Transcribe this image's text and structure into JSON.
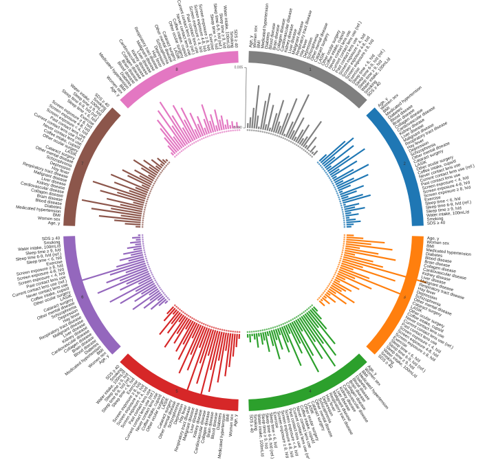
{
  "chart_data": {
    "type": "circular-bar",
    "axis": {
      "ticks": [
        "0.000",
        "0.005"
      ]
    },
    "variables": [
      "Age, y",
      "Women sex",
      "BMI",
      "Medicated hypertension",
      "Diabetes",
      "Blood disease",
      "Brain disease",
      "Collagen disease",
      "Cardiovascular disease",
      "Kidney disease",
      "Liver disease",
      "Malignant disease",
      "Respiratory tract disease",
      "Hay fever",
      "Depression",
      "Schizophrenia",
      "Other mental disease",
      "Cataract surgery",
      "LASIK",
      "Other ocular surgery",
      "Coffee intake, cups/d",
      "Never contact lens use",
      "Current contact lens use (ref.)",
      "Past contact lens use",
      "Screen exposure < 4, h/d",
      "Screen exposure 4-8, h/d",
      "Screen exposure ≥ 8, h/d",
      "Exercise",
      "Sleep time < 6, h/d",
      "Sleep time 6-9, h/d (ref.)",
      "Sleep time ≥ 9, h/d",
      "Water intake, 100mL/d",
      "Smoking",
      "SDS ≥ 40"
    ],
    "segments": [
      {
        "label": "1",
        "color": "#7f7f7f",
        "values": [
          0.0004,
          0.0009,
          0.0017,
          0.0036,
          0.0011,
          0.0002,
          0.0024,
          0.0031,
          0.0005,
          0.0022,
          0.0003,
          0.0016,
          0.0028,
          0.001,
          0.0007,
          0.0019,
          0.0033,
          0.0002,
          0.0014,
          0.004,
          0.0008,
          0.0021,
          0.0004,
          0.0012,
          0.0018,
          0.0006,
          0.0009,
          0.0026,
          0.0003,
          0.0013,
          0.0001,
          0.0007,
          0.0002,
          0.0005
        ]
      },
      {
        "label": "2",
        "color": "#1f77b4",
        "values": [
          0.0008,
          0.0027,
          0.0034,
          0.0012,
          0.003,
          0.0005,
          0.0022,
          0.0036,
          0.0009,
          0.0025,
          0.0004,
          0.0019,
          0.0032,
          0.0007,
          0.0016,
          0.0028,
          0.0011,
          0.0003,
          0.0021,
          0.0014,
          0.0006,
          0.0018,
          0.0024,
          0.0002,
          0.0013,
          0.0009,
          0.0017,
          0.0005,
          0.0011,
          0.0003,
          0.0008,
          0.0012,
          0.0006,
          0.0004
        ]
      },
      {
        "label": "3",
        "color": "#ff7f0e",
        "values": [
          0.0006,
          0.0014,
          0.0032,
          0.0021,
          0.0039,
          0.0012,
          0.0028,
          0.0043,
          0.0009,
          0.0025,
          0.0034,
          0.0072,
          0.0018,
          0.0047,
          0.0011,
          0.0026,
          0.0059,
          0.0015,
          0.0031,
          0.0008,
          0.0022,
          0.0005,
          0.0017,
          0.0013,
          0.001,
          0.0024,
          0.0007,
          0.0019,
          0.0004,
          0.0011,
          0.0003,
          0.0008,
          0.0002,
          0.0006
        ]
      },
      {
        "label": "4",
        "color": "#2ca02c",
        "values": [
          0.0005,
          0.0012,
          0.0021,
          0.0035,
          0.0016,
          0.0043,
          0.0029,
          0.005,
          0.0024,
          0.0039,
          0.0011,
          0.0033,
          0.0047,
          0.0019,
          0.0027,
          0.0008,
          0.0036,
          0.0014,
          0.0022,
          0.0006,
          0.0018,
          0.0009,
          0.0025,
          0.0013,
          0.0004,
          0.0017,
          0.0007,
          0.001,
          0.0003,
          0.0012,
          0.0005,
          0.0002,
          0.0007,
          0.0003
        ]
      },
      {
        "label": "5",
        "color": "#d62728",
        "values": [
          0.0004,
          0.0011,
          0.0019,
          0.0028,
          0.0036,
          0.0015,
          0.0042,
          0.0024,
          0.0051,
          0.0033,
          0.0061,
          0.0022,
          0.0047,
          0.003,
          0.0055,
          0.0018,
          0.0039,
          0.0026,
          0.0044,
          0.0013,
          0.0034,
          0.0021,
          0.0029,
          0.0009,
          0.0024,
          0.0016,
          0.0031,
          0.0007,
          0.002,
          0.0012,
          0.0025,
          0.0005,
          0.0014,
          0.0008
        ]
      },
      {
        "label": "6",
        "color": "#9467bd",
        "values": [
          0.0003,
          0.0008,
          0.0015,
          0.0006,
          0.0019,
          0.0011,
          0.0027,
          0.0009,
          0.0022,
          0.0014,
          0.0033,
          0.0017,
          0.004,
          0.0012,
          0.0028,
          0.0021,
          0.0046,
          0.0025,
          0.0036,
          0.0018,
          0.0031,
          0.0058,
          0.0024,
          0.0013,
          0.002,
          0.001,
          0.0016,
          0.0007,
          0.0012,
          0.0005,
          0.0009,
          0.0004,
          0.0007,
          0.0002
        ]
      },
      {
        "label": "7",
        "color": "#8c564b",
        "values": [
          0.0004,
          0.0013,
          0.0022,
          0.0035,
          0.0017,
          0.0042,
          0.0026,
          0.0051,
          0.0019,
          0.0031,
          0.0009,
          0.0038,
          0.0024,
          0.0046,
          0.0015,
          0.0029,
          0.0011,
          0.0034,
          0.0007,
          0.0021,
          0.0027,
          0.0012,
          0.0018,
          0.0006,
          0.0014,
          0.0023,
          0.0009,
          0.0016,
          0.0005,
          0.0011,
          0.0003,
          0.0008,
          0.0004,
          0.0002
        ]
      },
      {
        "label": "8",
        "color": "#e377c2",
        "values": [
          0.0003,
          0.0009,
          0.0016,
          0.0024,
          0.0031,
          0.0012,
          0.0037,
          0.002,
          0.0042,
          0.0027,
          0.0014,
          0.0034,
          0.0019,
          0.0029,
          0.0008,
          0.0022,
          0.0011,
          0.0017,
          0.0006,
          0.0013,
          0.0025,
          0.001,
          0.0015,
          0.0005,
          0.0018,
          0.0009,
          0.0012,
          0.0004,
          0.0008,
          0.0003,
          0.0006,
          0.0002,
          0.0005,
          0.0001
        ]
      }
    ]
  }
}
